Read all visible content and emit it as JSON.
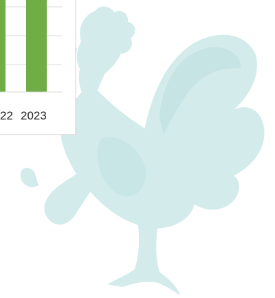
{
  "chart_fragment": {
    "x_labels": [
      "22",
      "2023"
    ]
  }
}
